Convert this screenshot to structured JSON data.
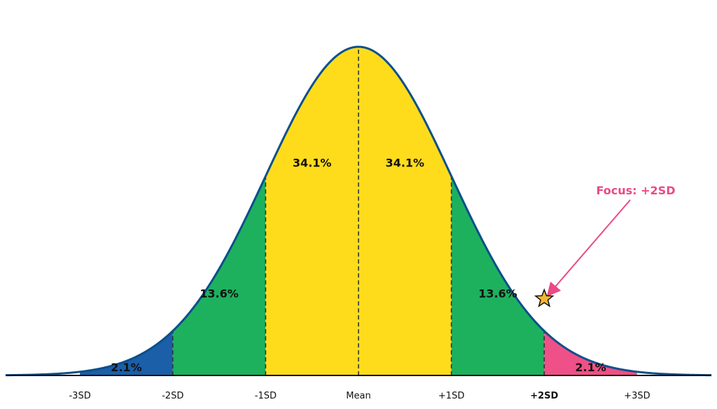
{
  "chart_data": {
    "type": "area",
    "title": "",
    "xlabel": "",
    "ylabel": "",
    "xlim": [
      -3.8,
      3.8
    ],
    "ylim": [
      0,
      0.3989
    ],
    "grid": false,
    "curve_color": "#0b4f8a",
    "tick_labels": [
      {
        "x": -3,
        "label": "-3SD",
        "color": "#111111"
      },
      {
        "x": -2,
        "label": "-2SD",
        "color": "#111111"
      },
      {
        "x": -1,
        "label": "-1SD",
        "color": "#111111"
      },
      {
        "x": 0,
        "label": "Mean",
        "color": "#111111"
      },
      {
        "x": 1,
        "label": "+1SD",
        "color": "#111111"
      },
      {
        "x": 2,
        "label": "+2SD",
        "color": "#f5b731"
      },
      {
        "x": 3,
        "label": "+3SD",
        "color": "#111111"
      }
    ],
    "regions": [
      {
        "from": -3.8,
        "to": -3,
        "label": "",
        "color": "#ffffff"
      },
      {
        "from": -3,
        "to": -2,
        "label": "2.1%",
        "color": "#1a5fa8"
      },
      {
        "from": -2,
        "to": -1,
        "label": "13.6%",
        "color": "#1db15e"
      },
      {
        "from": -1,
        "to": 0,
        "label": "34.1%",
        "color": "#fedc1c"
      },
      {
        "from": 0,
        "to": 1,
        "label": "34.1%",
        "color": "#fedc1c"
      },
      {
        "from": 1,
        "to": 2,
        "label": "13.6%",
        "color": "#1db15e"
      },
      {
        "from": 2,
        "to": 3,
        "label": "2.1%",
        "color": "#ef5087"
      },
      {
        "from": 3,
        "to": 3.8,
        "label": "",
        "color": "#ffffff"
      }
    ],
    "dividers": [
      -2,
      -1,
      0,
      1,
      2
    ],
    "annotation": {
      "text": "Focus: +2SD",
      "target_x": 2,
      "color": "#e94a86",
      "marker": "star-icon",
      "marker_color": "#f5b731"
    }
  }
}
